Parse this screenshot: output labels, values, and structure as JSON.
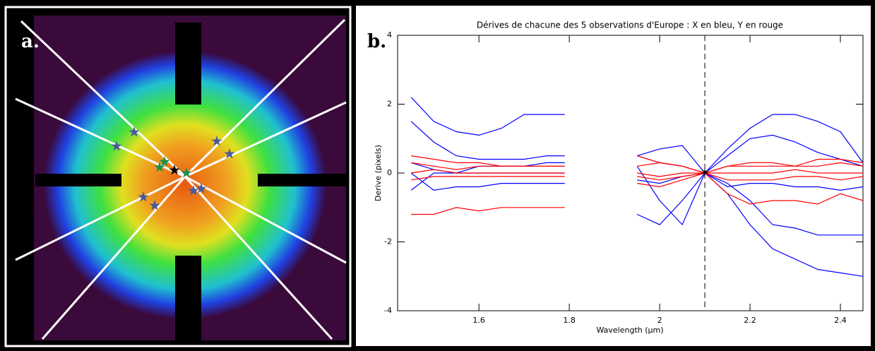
{
  "panel_labels": [
    "a.",
    "b."
  ],
  "chart_data": {
    "type": "line",
    "title": "Dérives de chacune des 5 observations d'Europe : X en bleu, Y en rouge",
    "xlabel": "Wavelength (µm)",
    "ylabel": "Derive (pixels)",
    "xlim": [
      1.42,
      2.45
    ],
    "xticks": [
      1.6,
      1.8,
      2.0,
      2.2,
      2.4
    ],
    "ylim": [
      -4,
      4
    ],
    "yticks": [
      -4,
      -2,
      0,
      2,
      4
    ],
    "reference_x": 2.1,
    "x": [
      1.45,
      1.5,
      1.55,
      1.6,
      1.65,
      1.7,
      1.75,
      1.79,
      1.87,
      1.95,
      2.0,
      2.05,
      2.1,
      2.15,
      2.2,
      2.25,
      2.3,
      2.35,
      2.4,
      2.45
    ],
    "series": [
      {
        "color": "#0000ff",
        "values": [
          2.2,
          1.5,
          1.2,
          1.1,
          1.3,
          1.7,
          1.7,
          1.7,
          null,
          0.5,
          0.7,
          0.8,
          0,
          0.7,
          1.3,
          1.7,
          1.7,
          1.5,
          1.2,
          0.3
        ]
      },
      {
        "color": "#0000ff",
        "values": [
          1.5,
          0.9,
          0.5,
          0.4,
          0.4,
          0.4,
          0.5,
          0.5,
          null,
          0.5,
          0.3,
          0.2,
          0,
          0.5,
          1.0,
          1.1,
          0.9,
          0.6,
          0.4,
          0.2
        ]
      },
      {
        "color": "#0000ff",
        "values": [
          0.3,
          0.1,
          0,
          0,
          0,
          0,
          0,
          0,
          null,
          -0.2,
          -0.3,
          -0.1,
          0,
          -0.6,
          -1.5,
          -2.2,
          -2.5,
          -2.8,
          -2.9,
          -3.0
        ]
      },
      {
        "color": "#0000ff",
        "values": [
          0,
          -0.5,
          -0.4,
          -0.4,
          -0.3,
          -0.3,
          -0.3,
          -0.3,
          null,
          0.2,
          -0.8,
          -1.5,
          0,
          -0.3,
          -0.8,
          -1.5,
          -1.6,
          -1.8,
          -1.8,
          -1.8
        ]
      },
      {
        "color": "#0000ff",
        "values": [
          -0.5,
          0,
          0,
          0.2,
          0.2,
          0.2,
          0.3,
          0.3,
          null,
          -1.2,
          -1.5,
          -0.8,
          0,
          -0.4,
          -0.3,
          -0.3,
          -0.4,
          -0.4,
          -0.5,
          -0.4
        ]
      },
      {
        "color": "#ff0000",
        "values": [
          0.3,
          0.2,
          0.1,
          0.2,
          0.2,
          0.2,
          0.2,
          0.2,
          null,
          0.2,
          0.3,
          0.2,
          0,
          0.2,
          0.2,
          0.2,
          0.2,
          0.2,
          0.3,
          0.2
        ]
      },
      {
        "color": "#ff0000",
        "values": [
          0,
          0.1,
          0,
          0,
          0,
          0,
          0,
          0,
          null,
          0,
          -0.1,
          0,
          0,
          0,
          0,
          0,
          0.1,
          0,
          0,
          0
        ]
      },
      {
        "color": "#ff0000",
        "values": [
          -0.2,
          -0.1,
          -0.1,
          -0.1,
          -0.1,
          -0.1,
          -0.1,
          -0.1,
          null,
          -0.3,
          -0.4,
          -0.2,
          0,
          -0.2,
          -0.2,
          -0.2,
          -0.1,
          -0.1,
          -0.2,
          -0.1
        ]
      },
      {
        "color": "#ff0000",
        "values": [
          -1.2,
          -1.2,
          -1.0,
          -1.1,
          -1.0,
          -1.0,
          -1.0,
          -1.0,
          null,
          -0.1,
          -0.2,
          -0.1,
          0,
          -0.6,
          -0.9,
          -0.8,
          -0.8,
          -0.9,
          -0.6,
          -0.8
        ]
      },
      {
        "color": "#ff0000",
        "values": [
          0.5,
          0.4,
          0.3,
          0.3,
          0.2,
          0.2,
          0.2,
          0.2,
          null,
          0.5,
          0.3,
          0.2,
          0,
          0.2,
          0.3,
          0.3,
          0.2,
          0.4,
          0.4,
          0.3
        ]
      }
    ]
  }
}
